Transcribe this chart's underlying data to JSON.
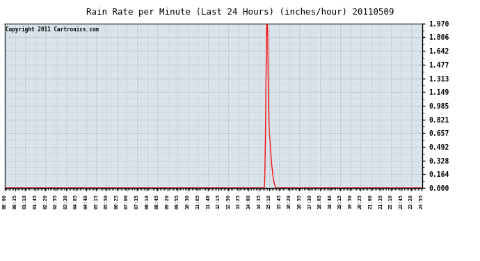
{
  "title": "Rain Rate per Minute (Last 24 Hours) (inches/hour) 20110509",
  "copyright_text": "Copyright 2011 Cartronics.com",
  "line_color": "#ff0000",
  "background_color": "#ffffff",
  "plot_bg_color": "#dde8f0",
  "grid_color": "#aaaaaa",
  "border_color": "#000000",
  "yticks": [
    0.0,
    0.164,
    0.328,
    0.492,
    0.657,
    0.821,
    0.985,
    1.149,
    1.313,
    1.477,
    1.642,
    1.806,
    1.97
  ],
  "ymax": 1.97,
  "ymin": 0.0,
  "total_minutes": 1440,
  "xtick_labels": [
    "00:00",
    "00:35",
    "01:10",
    "01:45",
    "02:20",
    "02:55",
    "03:30",
    "04:05",
    "04:40",
    "05:15",
    "05:50",
    "06:25",
    "07:00",
    "07:35",
    "08:10",
    "08:45",
    "09:20",
    "09:55",
    "10:30",
    "11:05",
    "11:40",
    "12:15",
    "12:50",
    "13:25",
    "14:00",
    "14:35",
    "15:10",
    "15:45",
    "16:20",
    "16:55",
    "17:30",
    "18:05",
    "18:40",
    "19:15",
    "19:50",
    "20:25",
    "21:00",
    "21:35",
    "22:10",
    "22:45",
    "23:20",
    "23:55"
  ],
  "xtick_positions_minutes": [
    0,
    35,
    70,
    105,
    140,
    175,
    210,
    245,
    280,
    315,
    350,
    385,
    420,
    455,
    490,
    525,
    560,
    595,
    630,
    665,
    700,
    735,
    770,
    805,
    840,
    875,
    910,
    945,
    980,
    1015,
    1050,
    1085,
    1120,
    1155,
    1190,
    1225,
    1260,
    1295,
    1330,
    1365,
    1400,
    1435
  ],
  "spike_data": [
    [
      893,
      0.0
    ],
    [
      894,
      0.0
    ],
    [
      895,
      0.05
    ],
    [
      896,
      0.15
    ],
    [
      897,
      0.35
    ],
    [
      898,
      0.6
    ],
    [
      899,
      0.9
    ],
    [
      900,
      1.3
    ],
    [
      901,
      1.6
    ],
    [
      902,
      1.85
    ],
    [
      903,
      1.97
    ],
    [
      904,
      1.97
    ],
    [
      905,
      1.97
    ],
    [
      906,
      1.8
    ],
    [
      907,
      1.5
    ],
    [
      908,
      1.2
    ],
    [
      909,
      1.0
    ],
    [
      910,
      0.85
    ],
    [
      911,
      0.75
    ],
    [
      912,
      0.65
    ],
    [
      913,
      0.6
    ],
    [
      914,
      0.55
    ],
    [
      915,
      0.5
    ],
    [
      916,
      0.45
    ],
    [
      917,
      0.4
    ],
    [
      918,
      0.35
    ],
    [
      919,
      0.3
    ],
    [
      920,
      0.27
    ],
    [
      921,
      0.24
    ],
    [
      922,
      0.21
    ],
    [
      923,
      0.18
    ],
    [
      924,
      0.15
    ],
    [
      925,
      0.12
    ],
    [
      926,
      0.1
    ],
    [
      927,
      0.08
    ],
    [
      928,
      0.06
    ],
    [
      929,
      0.05
    ],
    [
      930,
      0.04
    ],
    [
      931,
      0.03
    ],
    [
      932,
      0.02
    ],
    [
      933,
      0.01
    ],
    [
      934,
      0.0
    ]
  ]
}
